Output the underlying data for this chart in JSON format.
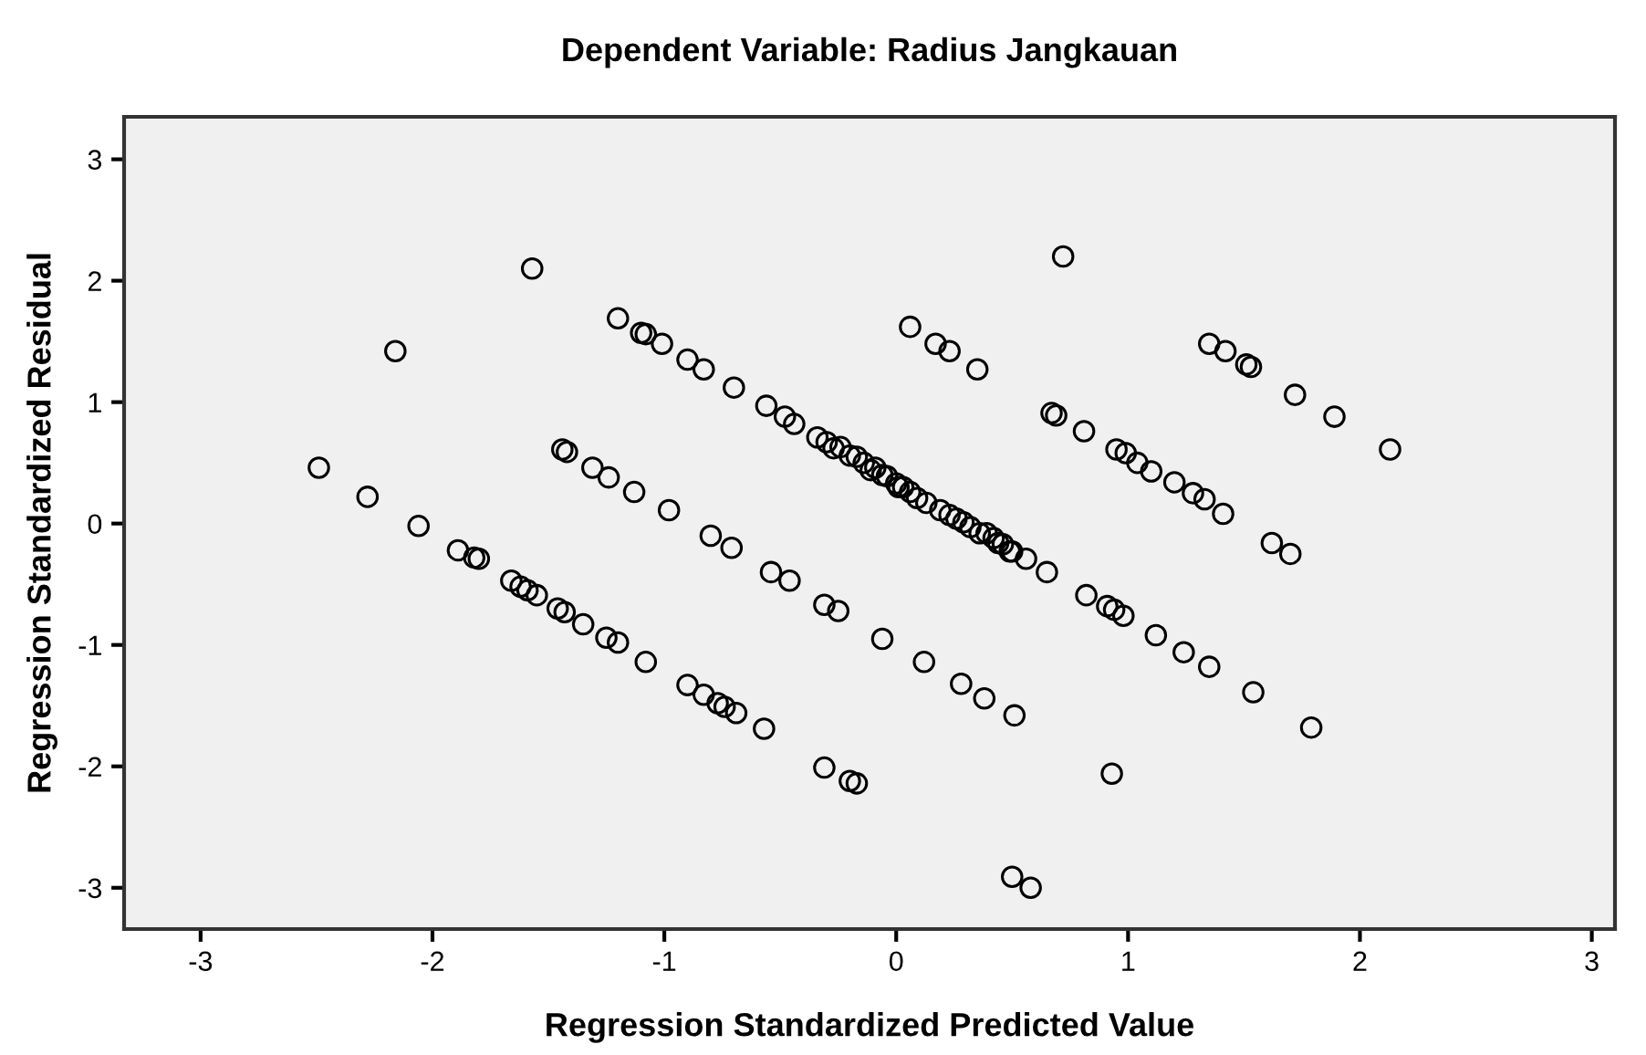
{
  "chart_data": {
    "type": "scatter",
    "title": "Dependent Variable: Radius Jangkauan",
    "xlabel": "Regression Standardized Predicted Value",
    "ylabel": "Regression Standardized Residual",
    "x": [
      -1.57,
      -2.16,
      -2.49,
      -2.28,
      -2.06,
      -1.2,
      -1.1,
      -1.08,
      -1.01,
      -0.9,
      -0.83,
      -0.7,
      -0.56,
      -0.48,
      -0.44,
      -0.34,
      -0.3,
      -1.44,
      -1.42,
      -1.31,
      -1.24,
      -1.13,
      -0.98,
      -0.8,
      -0.71,
      -0.54,
      -0.46,
      -0.31,
      -0.25,
      -0.06,
      0.12,
      0.28,
      0.38,
      0.51,
      -1.89,
      -1.82,
      -1.8,
      -1.66,
      -1.62,
      -1.59,
      -1.55,
      -1.46,
      -1.43,
      -1.35,
      -1.25,
      -1.2,
      -1.08,
      -0.9,
      -0.83,
      -0.77,
      -0.74,
      -0.69,
      -0.57,
      -0.31,
      -0.2,
      -0.17,
      0.93,
      0.5,
      0.58,
      1.62,
      1.7,
      0.82,
      0.91,
      0.94,
      0.98,
      1.12,
      1.24,
      1.35,
      1.54,
      1.79,
      0.72,
      0.06,
      0.17,
      0.23,
      0.35,
      1.35,
      1.42,
      1.51,
      1.53,
      1.72,
      1.89,
      2.13,
      0.67,
      0.69,
      0.81,
      0.95,
      0.99,
      1.04,
      1.1,
      1.2,
      1.28,
      1.33,
      1.41,
      -0.27,
      -0.24,
      -0.2,
      -0.17,
      -0.14,
      -0.11,
      -0.09,
      -0.06,
      -0.04,
      0.0,
      0.01,
      0.03,
      0.06,
      0.09,
      0.13,
      0.19,
      0.23,
      0.26,
      0.29,
      0.32,
      0.36,
      0.39,
      0.42,
      0.44,
      0.46,
      0.49,
      0.5,
      0.56,
      0.65
    ],
    "values": [
      2.1,
      1.42,
      0.46,
      0.22,
      -0.02,
      1.69,
      1.57,
      1.56,
      1.48,
      1.35,
      1.27,
      1.12,
      0.97,
      0.88,
      0.82,
      0.71,
      0.67,
      0.61,
      0.59,
      0.46,
      0.38,
      0.26,
      0.11,
      -0.1,
      -0.2,
      -0.4,
      -0.47,
      -0.67,
      -0.72,
      -0.95,
      -1.14,
      -1.32,
      -1.44,
      -1.58,
      -0.22,
      -0.28,
      -0.29,
      -0.47,
      -0.52,
      -0.55,
      -0.59,
      -0.7,
      -0.73,
      -0.83,
      -0.94,
      -0.98,
      -1.14,
      -1.33,
      -1.41,
      -1.48,
      -1.51,
      -1.56,
      -1.69,
      -2.01,
      -2.12,
      -2.14,
      -2.06,
      -2.91,
      -3.0,
      -0.16,
      -0.25,
      -0.59,
      -0.68,
      -0.71,
      -0.76,
      -0.92,
      -1.06,
      -1.18,
      -1.39,
      -1.68,
      2.2,
      1.62,
      1.48,
      1.42,
      1.27,
      1.48,
      1.42,
      1.31,
      1.29,
      1.06,
      0.88,
      0.61,
      0.91,
      0.89,
      0.76,
      0.61,
      0.58,
      0.5,
      0.43,
      0.34,
      0.25,
      0.2,
      0.08,
      0.62,
      0.63,
      0.56,
      0.55,
      0.5,
      0.44,
      0.46,
      0.4,
      0.39,
      0.33,
      0.3,
      0.3,
      0.26,
      0.21,
      0.17,
      0.11,
      0.07,
      0.04,
      0.01,
      -0.03,
      -0.08,
      -0.08,
      -0.12,
      -0.16,
      -0.17,
      -0.23,
      -0.23,
      -0.29,
      -0.4
    ],
    "color": "#000000",
    "marker": "circle",
    "xlim": [
      -3.33,
      3.1
    ],
    "ylim": [
      -3.34,
      3.35
    ],
    "xticks": [
      -3,
      -2,
      -1,
      0,
      1,
      2,
      3
    ],
    "yticks": [
      -3,
      -2,
      -1,
      0,
      1,
      2,
      3
    ],
    "grid": false
  }
}
